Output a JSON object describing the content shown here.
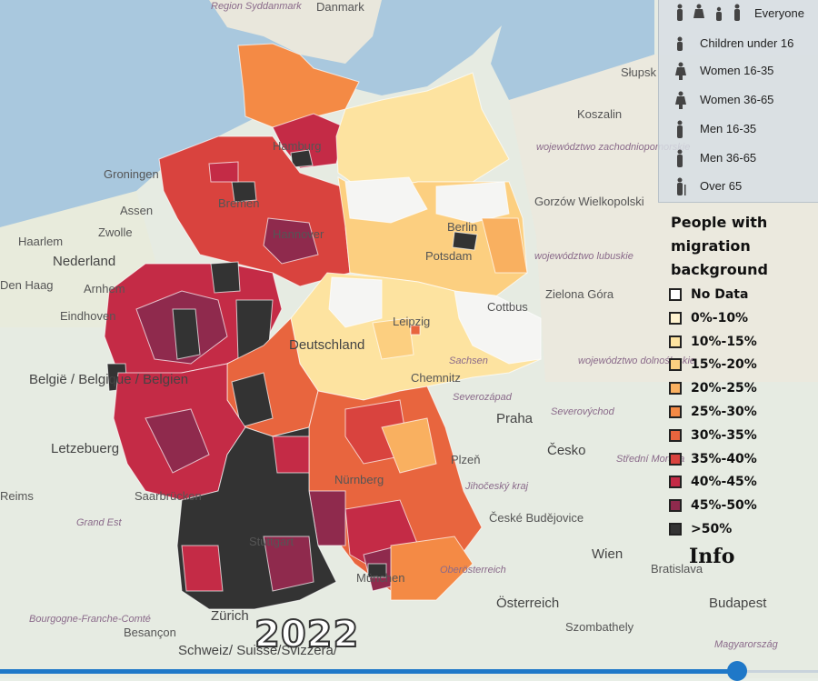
{
  "year": "2022",
  "filters": [
    {
      "label": "Everyone",
      "icon": "group-people-icon",
      "selected": true
    },
    {
      "label": "Children under 16",
      "icon": "child-icon"
    },
    {
      "label": "Women 16-35",
      "icon": "woman-icon"
    },
    {
      "label": "Women 36-65",
      "icon": "woman-icon"
    },
    {
      "label": "Men 16-35",
      "icon": "man-icon"
    },
    {
      "label": "Men 36-65",
      "icon": "man-icon"
    },
    {
      "label": "Over 65",
      "icon": "elder-icon"
    }
  ],
  "legend": {
    "title_lines": [
      "People with",
      "migration",
      "background"
    ],
    "items": [
      {
        "label": "No Data",
        "color": "#ffffff"
      },
      {
        "label": "0%-10%",
        "color": "#fff3d0"
      },
      {
        "label": "10%-15%",
        "color": "#fde3a0"
      },
      {
        "label": "15%-20%",
        "color": "#fccf80"
      },
      {
        "label": "20%-25%",
        "color": "#f9b060"
      },
      {
        "label": "25%-30%",
        "color": "#f48a45"
      },
      {
        "label": "30%-35%",
        "color": "#e8653e"
      },
      {
        "label": "35%-40%",
        "color": "#d9433e"
      },
      {
        "label": "40%-45%",
        "color": "#c42b46"
      },
      {
        "label": "45%-50%",
        "color": "#8f2a4d"
      },
      {
        "label": ">50%",
        "color": "#333333"
      }
    ]
  },
  "info_label": "Info",
  "places": [
    "Region Syddanmark",
    "Danmark",
    "Groningen",
    "Assen",
    "Haarlem",
    "Zwolle",
    "Nederland",
    "Den Haag",
    "Arnhem",
    "Eindhoven",
    "België / Belgique / Belgien",
    "Letzebuerg",
    "Reims",
    "Grand Est",
    "Saarbrücken",
    "Bourgogne-Franche-Comté",
    "Besançon",
    "Zürich",
    "Schweiz/ Suisse/Svizzera/",
    "Słupsk",
    "Koszalin",
    "województwo zachodniopomorskie",
    "Gorzów Wielkopolski",
    "województwo lubuskie",
    "Zielona Góra",
    "województwo dolnośląskie",
    "Praha",
    "Česko",
    "Plzeň",
    "Jihočeský kraj",
    "České Budějovice",
    "Oberösterreich",
    "Österreich",
    "Wien",
    "Bratislava",
    "Budapest",
    "Szombathely",
    "Magyarország",
    "Berlin",
    "Potsdam",
    "Cottbus",
    "Leipzig",
    "Chemnitz",
    "Deutschland",
    "Bremen",
    "Hamburg",
    "Hannover",
    "Nürnberg",
    "München",
    "Stuttgart",
    "Sachsen",
    "Severozápad",
    "Severovýchod",
    "Střední Morava"
  ],
  "colors": {
    "water": "#a9c8de",
    "land": "#ece9de",
    "slider": "#1f78c8"
  }
}
